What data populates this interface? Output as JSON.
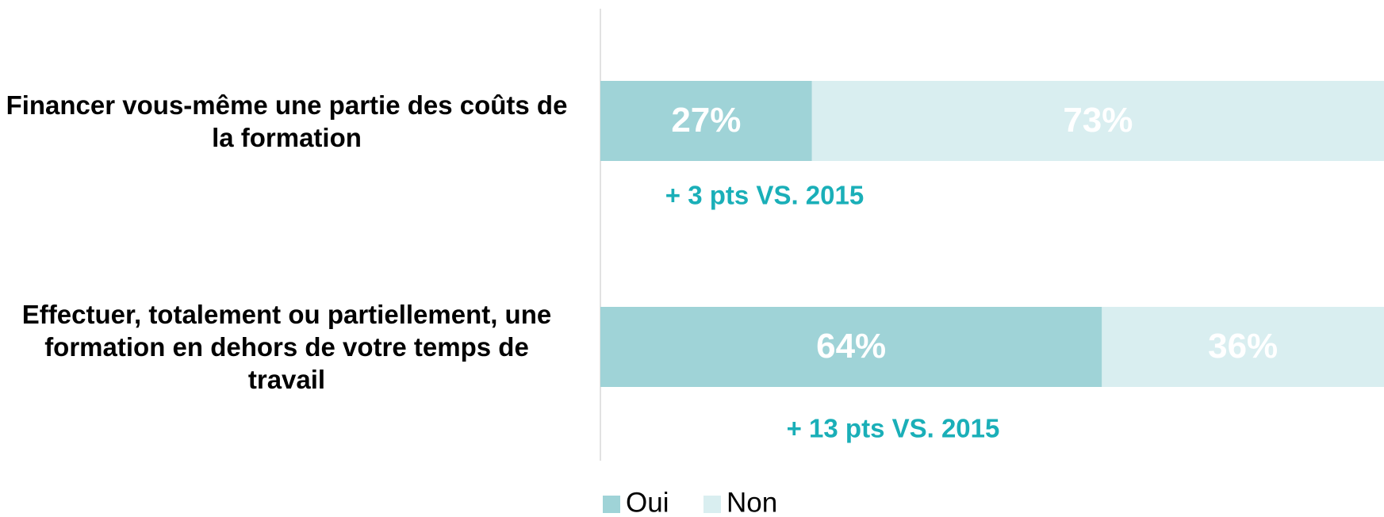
{
  "chart_data": {
    "type": "stacked_bar_horizontal",
    "categories": [
      "Financer vous-même une partie des coûts de la formation",
      "Effectuer, totalement ou partiellement, une formation en dehors de votre temps de travail"
    ],
    "series": [
      {
        "name": "Oui",
        "color": "#9fd3d7",
        "values": [
          27,
          64
        ],
        "value_labels": [
          "27%",
          "64%"
        ]
      },
      {
        "name": "Non",
        "color": "#d9eef0",
        "values": [
          73,
          36
        ],
        "value_labels": [
          "73%",
          "36%"
        ]
      }
    ],
    "annotations": [
      "+ 3 pts VS. 2015",
      "+ 13 pts VS. 2015"
    ],
    "annotation_color": "#1aafb8",
    "xlim": [
      0,
      100
    ],
    "legend": "bottom"
  }
}
